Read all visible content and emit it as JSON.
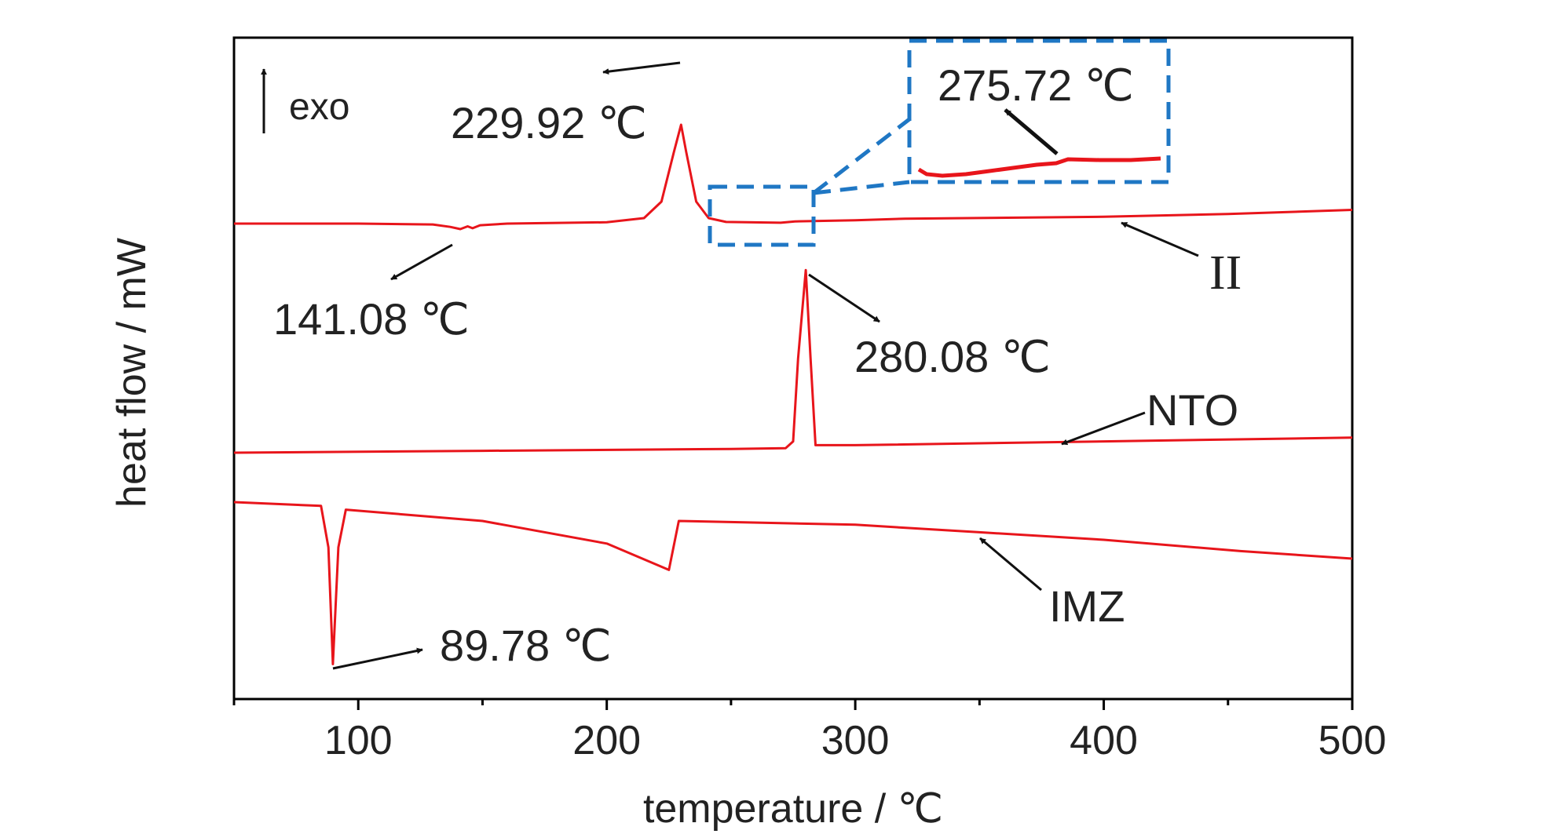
{
  "chart_data": {
    "type": "line",
    "xlabel": "temperature / ℃",
    "ylabel": "heat flow / mW",
    "xlim": [
      50,
      500
    ],
    "x_ticks": [
      "100",
      "200",
      "300",
      "400",
      "500"
    ],
    "exo_label": "exo",
    "grid": false,
    "series": [
      {
        "name": "II",
        "color": "#e8151b",
        "points": [
          [
            50,
            0.0
          ],
          [
            100,
            0.0
          ],
          [
            130,
            -0.03
          ],
          [
            137,
            -0.12
          ],
          [
            141.08,
            -0.2
          ],
          [
            144,
            -0.1
          ],
          [
            146,
            -0.17
          ],
          [
            149,
            -0.06
          ],
          [
            160,
            0.0
          ],
          [
            200,
            0.05
          ],
          [
            215,
            0.2
          ],
          [
            222,
            0.8
          ],
          [
            227,
            2.6
          ],
          [
            229.92,
            3.6
          ],
          [
            232,
            2.6
          ],
          [
            236,
            0.8
          ],
          [
            241,
            0.2
          ],
          [
            248,
            0.06
          ],
          [
            270,
            0.03
          ],
          [
            275.72,
            0.08
          ],
          [
            300,
            0.12
          ],
          [
            320,
            0.18
          ],
          [
            400,
            0.25
          ],
          [
            450,
            0.35
          ],
          [
            500,
            0.5
          ]
        ]
      },
      {
        "name": "NTO",
        "color": "#e8151b",
        "points": [
          [
            50,
            0.0
          ],
          [
            150,
            0.05
          ],
          [
            250,
            0.1
          ],
          [
            272,
            0.12
          ],
          [
            275,
            0.3
          ],
          [
            277,
            2.5
          ],
          [
            280.08,
            4.85
          ],
          [
            282,
            2.5
          ],
          [
            284,
            0.2
          ],
          [
            300,
            0.2
          ],
          [
            400,
            0.3
          ],
          [
            500,
            0.4
          ]
        ]
      },
      {
        "name": "IMZ",
        "color": "#e8151b",
        "points": [
          [
            50,
            0.0
          ],
          [
            85,
            -0.1
          ],
          [
            88,
            -1.2
          ],
          [
            89.78,
            -4.3
          ],
          [
            92,
            -1.2
          ],
          [
            95,
            -0.2
          ],
          [
            150,
            -0.5
          ],
          [
            200,
            -1.1
          ],
          [
            225,
            -1.8
          ],
          [
            229,
            -0.5
          ],
          [
            300,
            -0.6
          ],
          [
            350,
            -0.8
          ],
          [
            400,
            -1.0
          ],
          [
            455,
            -1.3
          ],
          [
            500,
            -1.5
          ]
        ]
      }
    ],
    "annotations": [
      {
        "text": "229.92 ℃",
        "series": "II",
        "x": 229.92
      },
      {
        "text": "141.08 ℃",
        "series": "II",
        "x": 141.08
      },
      {
        "text": "275.72 ℃",
        "series": "II",
        "x": 275.72
      },
      {
        "text": "280.08 ℃",
        "series": "NTO",
        "x": 280.08
      },
      {
        "text": "89.78 ℃",
        "series": "IMZ",
        "x": 89.78
      },
      {
        "text": "II",
        "series": "II"
      },
      {
        "text": "NTO",
        "series": "NTO"
      },
      {
        "text": "IMZ",
        "series": "IMZ"
      }
    ],
    "colors": {
      "curve": "#e8151b",
      "inset_box": "#1f77c4",
      "axis": "#000000"
    }
  }
}
